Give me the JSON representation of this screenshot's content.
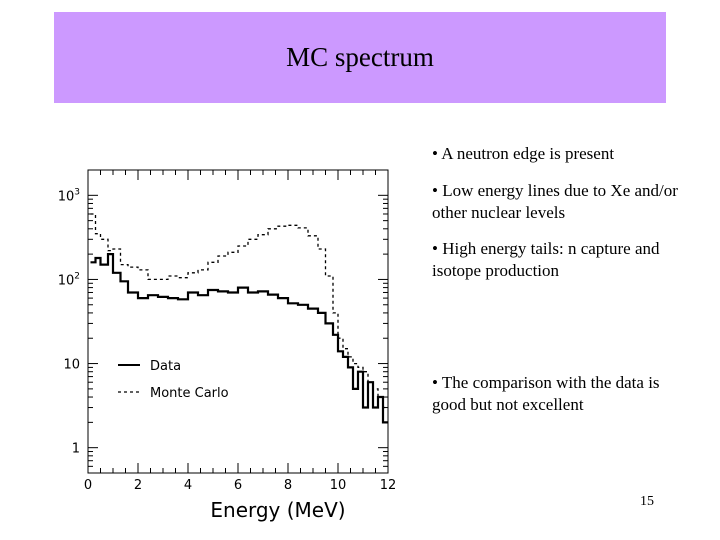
{
  "slide": {
    "title": "MC spectrum",
    "page_number": "15",
    "bullets": [
      "• A neutron edge is present",
      "• Low energy lines due to Xe and/or other nuclear levels",
      "• High energy tails: n capture and isotope production",
      "• The comparison with the data is good but not excellent"
    ]
  },
  "colors": {
    "title_band": "#cc99ff",
    "lines": "#000000"
  },
  "chart_data": {
    "type": "line",
    "xlabel": "Energy (MeV)",
    "ylabel": "",
    "title": "",
    "xlim": [
      0,
      12
    ],
    "ylim": [
      0.5,
      2000
    ],
    "yscale": "log",
    "x_ticks": [
      "0",
      "2",
      "4",
      "6",
      "8",
      "10",
      "12"
    ],
    "y_ticks": [
      "1",
      "10",
      "10^2",
      "10^3"
    ],
    "legend": {
      "placement": "middle-left",
      "entries": [
        "Data",
        "Monte Carlo"
      ]
    },
    "grid": false,
    "x": [
      0.1,
      0.3,
      0.5,
      0.8,
      1.0,
      1.3,
      1.6,
      2.0,
      2.4,
      2.8,
      3.2,
      3.6,
      4.0,
      4.4,
      4.8,
      5.2,
      5.6,
      6.0,
      6.4,
      6.8,
      7.2,
      7.6,
      8.0,
      8.4,
      8.8,
      9.2,
      9.5,
      9.8,
      10.0,
      10.2,
      10.4,
      10.6,
      10.8,
      11.0,
      11.2,
      11.4,
      11.6,
      11.8
    ],
    "series": [
      {
        "name": "Data",
        "style": "solid",
        "values": [
          160,
          180,
          150,
          200,
          120,
          95,
          70,
          60,
          65,
          62,
          60,
          58,
          70,
          65,
          75,
          72,
          70,
          80,
          70,
          72,
          66,
          60,
          52,
          50,
          45,
          40,
          30,
          22,
          14,
          12,
          9,
          5,
          8,
          3,
          6,
          3,
          4,
          2
        ]
      },
      {
        "name": "Monte Carlo",
        "style": "dashed",
        "values": [
          600,
          350,
          300,
          220,
          230,
          150,
          140,
          130,
          100,
          100,
          110,
          105,
          120,
          130,
          160,
          190,
          210,
          250,
          300,
          340,
          400,
          430,
          440,
          410,
          330,
          230,
          110,
          40,
          20,
          15,
          12,
          10,
          9,
          8,
          6,
          5,
          4,
          3
        ]
      }
    ]
  }
}
